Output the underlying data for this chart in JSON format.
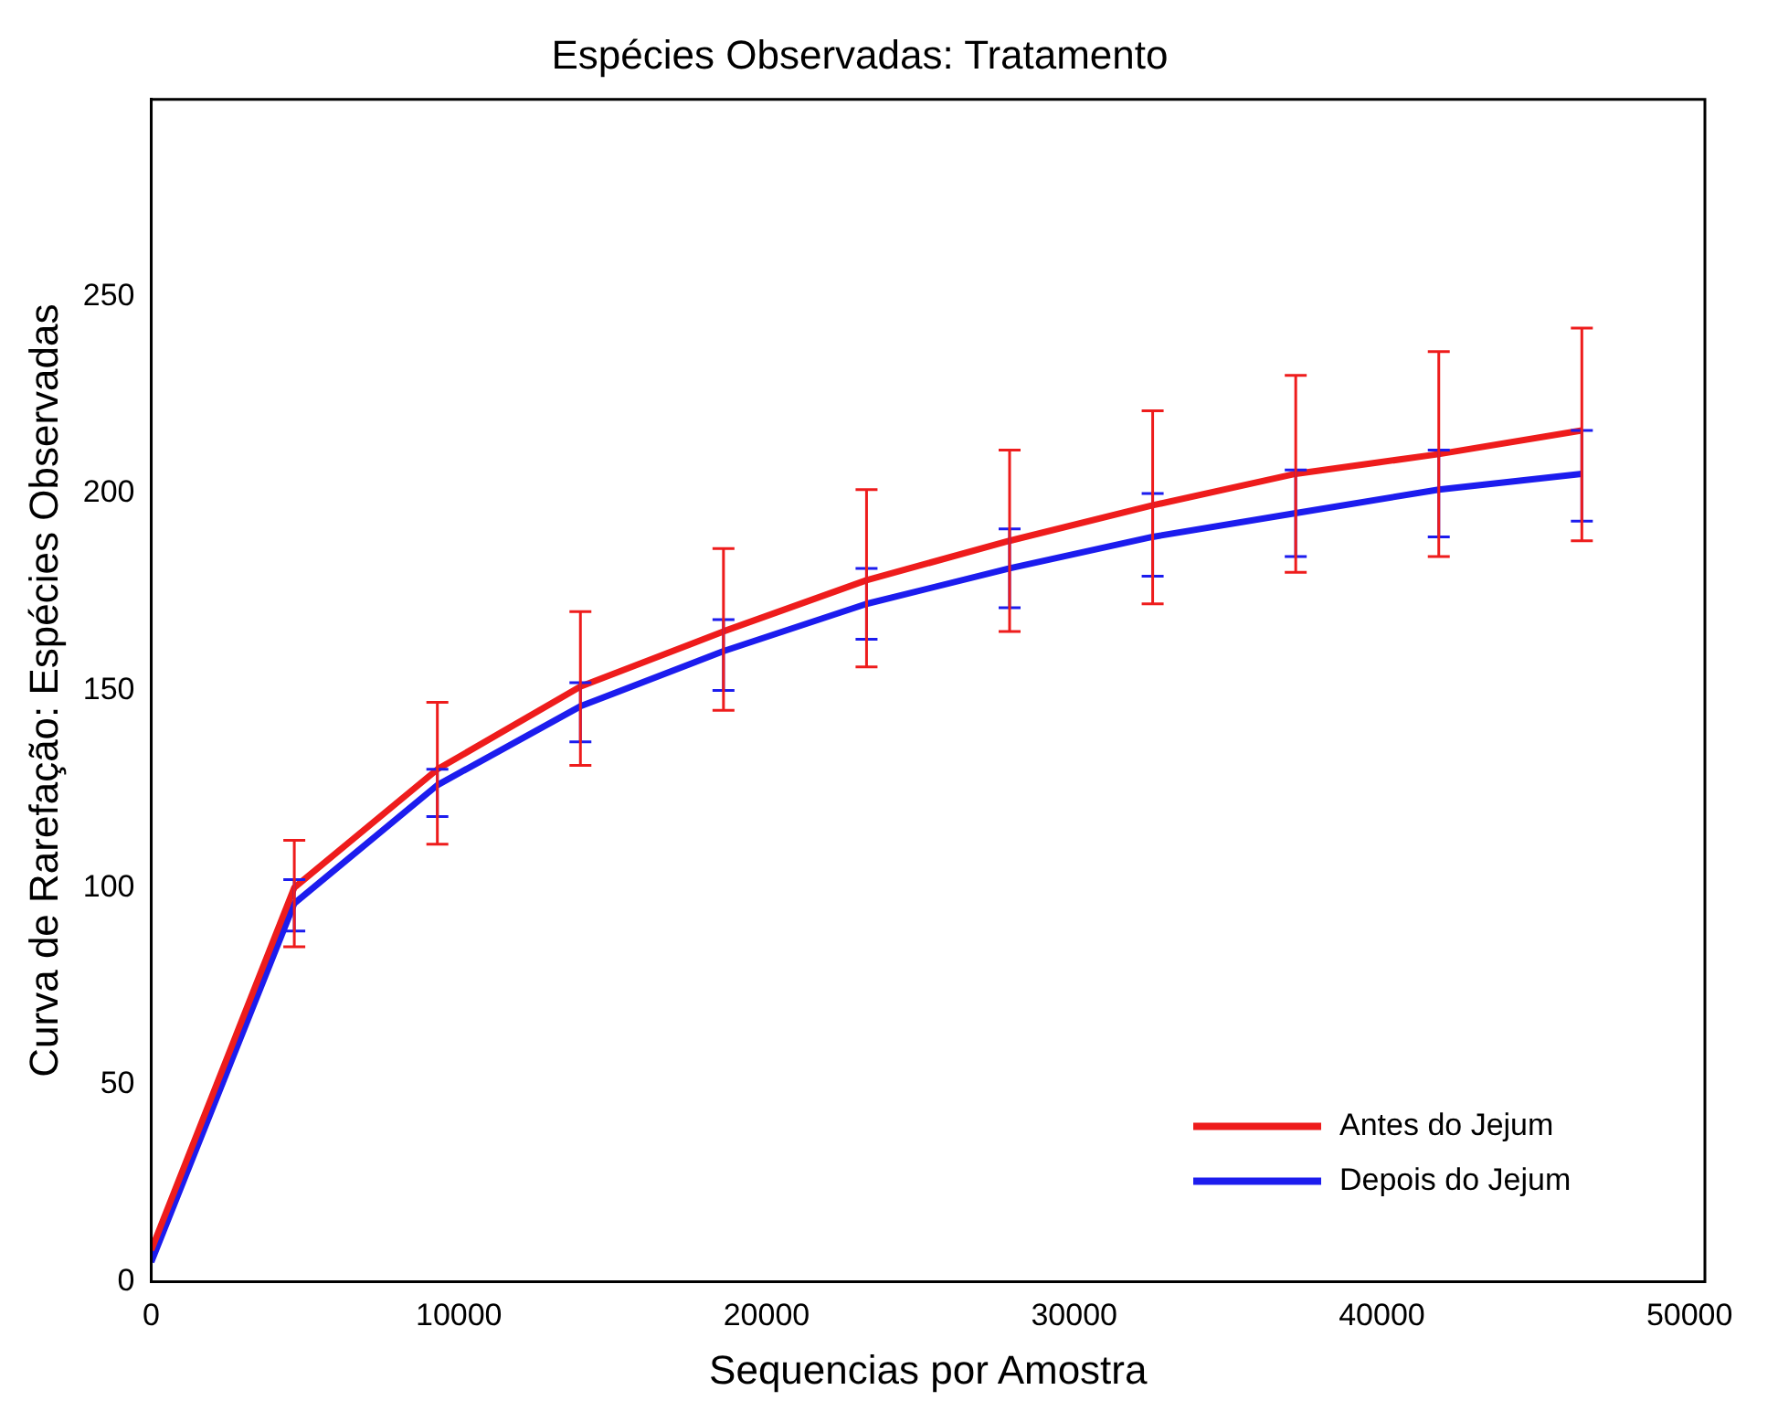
{
  "chart_data": {
    "type": "line",
    "title": "Espécies Observadas: Tratamento",
    "xlabel": "Sequencias por Amostra",
    "ylabel": "Curva de Rarefação: Espécies Observadas",
    "x": [
      0,
      4650,
      9300,
      13950,
      18600,
      23250,
      27900,
      32550,
      37200,
      41850,
      46500
    ],
    "series": [
      {
        "name": "Antes do Jejum",
        "color": "#ee1c1c",
        "values": [
          8,
          100,
          130,
          151,
          165,
          178,
          188,
          197,
          205,
          210,
          216
        ],
        "errors": [
          null,
          [
            85,
            112
          ],
          [
            111,
            147
          ],
          [
            131,
            170
          ],
          [
            145,
            186
          ],
          [
            156,
            201
          ],
          [
            165,
            211
          ],
          [
            172,
            221
          ],
          [
            180,
            230
          ],
          [
            184,
            236
          ],
          [
            188,
            242
          ]
        ]
      },
      {
        "name": "Depois do Jejum",
        "color": "#1c1cee",
        "values": [
          5,
          96,
          126,
          146,
          160,
          172,
          181,
          189,
          195,
          201,
          205
        ],
        "errors": [
          null,
          [
            89,
            102
          ],
          [
            118,
            130
          ],
          [
            137,
            152
          ],
          [
            150,
            168
          ],
          [
            163,
            181
          ],
          [
            171,
            191
          ],
          [
            179,
            200
          ],
          [
            184,
            206
          ],
          [
            189,
            211
          ],
          [
            193,
            216
          ]
        ]
      }
    ],
    "xlim": [
      0,
      50500
    ],
    "xticks": [
      0,
      10000,
      20000,
      30000,
      40000,
      50000
    ],
    "ylim": [
      0,
      300
    ],
    "yticks": [
      0,
      50,
      100,
      150,
      200,
      250
    ],
    "grid": false,
    "legend": "bottom right",
    "marker": "none",
    "line_style": "solid"
  }
}
